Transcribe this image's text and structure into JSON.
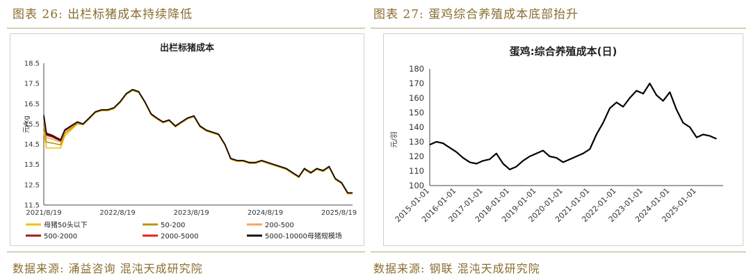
{
  "left": {
    "figure_title": "图表 26:  出栏标猪成本持续降低",
    "source": "数据来源:  涌益咨询  混沌天成研究院"
  },
  "right": {
    "figure_title": "图表 27:  蛋鸡综合养殖成本底部抬升",
    "source": "数据来源:  钢联  混沌天成研究院"
  },
  "chart_data": [
    {
      "type": "line",
      "title": "出栏标猪成本",
      "ylabel": "元/kg",
      "xlabel": "",
      "ylim": [
        11.5,
        18.5
      ],
      "yticks": [
        "18.5",
        "17.5",
        "16.5",
        "15.5",
        "14.5",
        "13.5",
        "12.5",
        "11.5"
      ],
      "xlim": [
        "2021-08-19",
        "2025-10-25"
      ],
      "xticks": [
        "2021/8/19",
        "2022/8/19",
        "2023/8/19",
        "2024/8/19",
        "2025/8/19"
      ],
      "grid": false,
      "legend_position": "bottom",
      "series": [
        {
          "name": "母猪50头以下",
          "color": "#f2c200",
          "offset": -0.6
        },
        {
          "name": "50-200",
          "color": "#b8960a",
          "offset": -0.35
        },
        {
          "name": "200-500",
          "color": "#f4a460",
          "offset": -0.15
        },
        {
          "name": "500-2000",
          "color": "#9b1c1c",
          "offset": 0.05
        },
        {
          "name": "2000-5000",
          "color": "#e8201a",
          "offset": -0.05
        },
        {
          "name": "5000-10000母猪规模场",
          "color": "#111111",
          "offset": 0
        }
      ],
      "x": [
        "2021-08-19",
        "2021-09-01",
        "2021-10-01",
        "2021-10-20",
        "2021-11-10",
        "2021-12-01",
        "2022-01-01",
        "2022-02-01",
        "2022-03-01",
        "2022-04-01",
        "2022-05-01",
        "2022-06-01",
        "2022-07-01",
        "2022-08-01",
        "2022-09-01",
        "2022-10-01",
        "2022-11-01",
        "2022-12-01",
        "2023-01-01",
        "2023-02-01",
        "2023-03-01",
        "2023-04-01",
        "2023-05-01",
        "2023-06-01",
        "2023-07-01",
        "2023-08-01",
        "2023-09-01",
        "2023-10-01",
        "2023-11-01",
        "2023-12-01",
        "2024-01-01",
        "2024-02-01",
        "2024-03-01",
        "2024-04-01",
        "2024-05-01",
        "2024-06-01",
        "2024-07-01",
        "2024-08-01",
        "2024-09-01",
        "2024-10-01",
        "2024-11-01",
        "2024-12-01",
        "2025-01-01",
        "2025-02-01",
        "2025-03-01",
        "2025-04-01",
        "2025-05-01",
        "2025-06-01",
        "2025-07-01",
        "2025-08-01",
        "2025-09-01",
        "2025-10-01",
        "2025-10-25"
      ],
      "values": [
        15.9,
        15.0,
        14.9,
        14.8,
        14.7,
        15.2,
        15.4,
        15.6,
        15.5,
        15.8,
        16.1,
        16.2,
        16.2,
        16.3,
        16.6,
        17.0,
        17.2,
        17.1,
        16.6,
        16.0,
        15.8,
        15.6,
        15.7,
        15.4,
        15.6,
        15.8,
        15.9,
        15.4,
        15.2,
        15.1,
        15.0,
        14.5,
        13.8,
        13.7,
        13.7,
        13.6,
        13.6,
        13.7,
        13.6,
        13.5,
        13.4,
        13.3,
        13.1,
        12.9,
        13.3,
        13.1,
        13.3,
        13.2,
        13.4,
        12.8,
        12.6,
        12.1,
        12.1
      ]
    },
    {
      "type": "line",
      "title": "蛋鸡:综合养殖成本(日)",
      "ylabel": "元/羽",
      "xlabel": "",
      "ylim": [
        100,
        180
      ],
      "yticks": [
        "180",
        "170",
        "160",
        "150",
        "140",
        "130",
        "120",
        "110",
        "100"
      ],
      "xlim": [
        "2015-01-01",
        "2025-12-31"
      ],
      "xticks": [
        "2015-01-01",
        "2016-01-01",
        "2017-01-01",
        "2018-01-01",
        "2019-01-01",
        "2020-01-01",
        "2021-01-01",
        "2022-01-01",
        "2023-01-01",
        "2024-01-01",
        "2025-01-01"
      ],
      "grid": false,
      "series": [
        {
          "name": "",
          "color": "#000000"
        }
      ],
      "x": [
        "2015-01-01",
        "2015-04-01",
        "2015-07-01",
        "2015-10-01",
        "2016-01-01",
        "2016-04-01",
        "2016-07-01",
        "2016-10-01",
        "2017-01-01",
        "2017-04-01",
        "2017-07-01",
        "2017-10-01",
        "2018-01-01",
        "2018-04-01",
        "2018-07-01",
        "2018-10-01",
        "2019-01-01",
        "2019-04-01",
        "2019-07-01",
        "2019-10-01",
        "2020-01-01",
        "2020-04-01",
        "2020-07-01",
        "2020-10-01",
        "2021-01-01",
        "2021-04-01",
        "2021-07-01",
        "2021-10-01",
        "2022-01-01",
        "2022-04-01",
        "2022-07-01",
        "2022-10-01",
        "2023-01-01",
        "2023-04-01",
        "2023-07-01",
        "2023-10-01",
        "2024-01-01",
        "2024-04-01",
        "2024-07-01",
        "2024-10-01",
        "2025-01-01",
        "2025-04-01",
        "2025-07-01",
        "2025-10-01"
      ],
      "values": [
        128,
        130,
        129,
        126,
        123,
        119,
        116,
        115,
        117,
        118,
        122,
        115,
        111,
        113,
        117,
        120,
        122,
        124,
        120,
        119,
        116,
        118,
        120,
        122,
        125,
        135,
        143,
        153,
        157,
        154,
        160,
        165,
        163,
        170,
        162,
        158,
        164,
        152,
        143,
        140,
        133,
        135,
        134,
        132
      ]
    }
  ]
}
